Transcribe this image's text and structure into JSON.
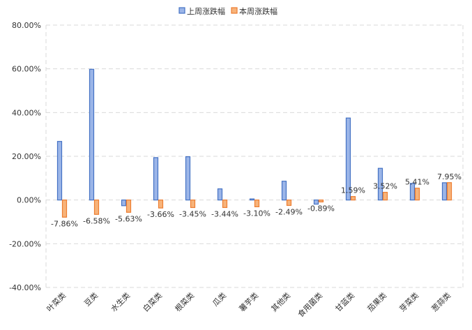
{
  "chart_data": {
    "type": "bar",
    "title": "",
    "xlabel": "",
    "ylabel": "",
    "ylim": [
      -40,
      80
    ],
    "ytick_step": 20,
    "ytick_labels": [
      "80.00%",
      "60.00%",
      "40.00%",
      "20.00%",
      "0.00%",
      "-20.00%",
      "-40.00%"
    ],
    "grid": "horizontal-dashed",
    "legend_position": "top-center",
    "categories": [
      "叶菜类",
      "豆类",
      "水生类",
      "白菜类",
      "根菜类",
      "瓜类",
      "薯芋类",
      "其他类",
      "食用菌类",
      "甘蓝类",
      "茄果类",
      "芽菜类",
      "葱蒜类"
    ],
    "series": [
      {
        "name": "上周涨跌幅",
        "color": "#9bb5e8",
        "border_color": "#4472c4",
        "values": [
          26.8,
          59.8,
          -2.6,
          19.4,
          19.8,
          5.1,
          0.5,
          8.6,
          -1.9,
          37.5,
          14.5,
          7.6,
          7.9
        ]
      },
      {
        "name": "本周涨跌幅",
        "color": "#f7b37a",
        "border_color": "#ed7d31",
        "values": [
          -7.86,
          -6.58,
          -5.63,
          -3.66,
          -3.45,
          -3.44,
          -3.1,
          -2.49,
          -0.89,
          1.59,
          3.52,
          5.41,
          7.95
        ],
        "data_labels": [
          "-7.86%",
          "-6.58%",
          "-5.63%",
          "-3.66%",
          "-3.45%",
          "-3.44%",
          "-3.10%",
          "-2.49%",
          "-0.89%",
          "1.59%",
          "3.52%",
          "5.41%",
          "7.95%"
        ]
      }
    ]
  }
}
